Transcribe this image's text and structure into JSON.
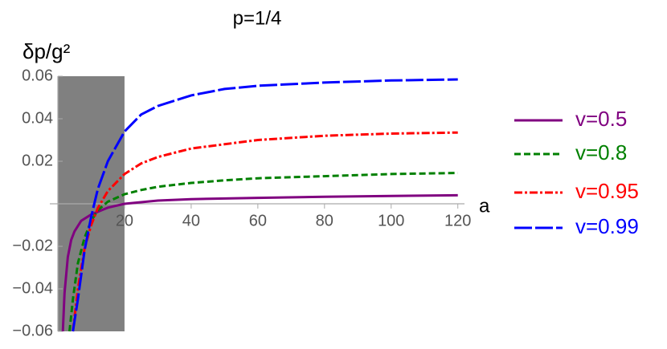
{
  "chart_data": {
    "type": "line",
    "title": "p=1/4",
    "x_label": "a",
    "y_label": "δp/g²",
    "xlim": [
      0,
      122
    ],
    "ylim": [
      -0.06,
      0.06
    ],
    "xticks": [
      20,
      40,
      60,
      80,
      100,
      120
    ],
    "yticks": [
      {
        "value": -0.06,
        "label": "−0.06"
      },
      {
        "value": -0.04,
        "label": "−0.04"
      },
      {
        "value": -0.02,
        "label": "−0.02"
      },
      0.02,
      0.04,
      0.06
    ],
    "shade_x": [
      0,
      20
    ],
    "shade_color": "#808080",
    "series": [
      {
        "name": "v=0.5",
        "color": "#800080",
        "dash": "none",
        "x": [
          1.5,
          2,
          3,
          4,
          5,
          7,
          10,
          15,
          20,
          30,
          40,
          60,
          80,
          100,
          120
        ],
        "values": [
          -0.06,
          -0.042,
          -0.025,
          -0.017,
          -0.013,
          -0.008,
          -0.005,
          -0.0018,
          0,
          0.0015,
          0.0022,
          0.0028,
          0.0033,
          0.0037,
          0.004
        ]
      },
      {
        "name": "v=0.8",
        "color": "#008000",
        "dash": "8,4",
        "x": [
          3.5,
          4.5,
          6,
          8,
          10,
          12,
          15,
          20,
          25,
          30,
          40,
          50,
          60,
          80,
          100,
          120
        ],
        "values": [
          -0.06,
          -0.045,
          -0.028,
          -0.016,
          -0.008,
          -0.003,
          0.001,
          0.0045,
          0.0065,
          0.008,
          0.0098,
          0.011,
          0.012,
          0.013,
          0.014,
          0.0145
        ]
      },
      {
        "name": "v=0.95",
        "color": "#ff0000",
        "dash": "10,3,3,3",
        "x": [
          4.5,
          6,
          8,
          10,
          12,
          15,
          20,
          25,
          30,
          40,
          50,
          60,
          80,
          100,
          120
        ],
        "values": [
          -0.06,
          -0.04,
          -0.021,
          -0.01,
          -0.002,
          0.006,
          0.014,
          0.019,
          0.022,
          0.026,
          0.028,
          0.03,
          0.032,
          0.033,
          0.0335
        ]
      },
      {
        "name": "v=0.99",
        "color": "#0000ff",
        "dash": "22,4",
        "x": [
          4.5,
          6,
          8,
          10,
          12,
          15,
          20,
          25,
          30,
          40,
          50,
          60,
          80,
          100,
          120
        ],
        "values": [
          -0.06,
          -0.045,
          -0.022,
          -0.006,
          0.007,
          0.02,
          0.034,
          0.042,
          0.046,
          0.051,
          0.054,
          0.0555,
          0.057,
          0.058,
          0.0585
        ]
      }
    ]
  }
}
